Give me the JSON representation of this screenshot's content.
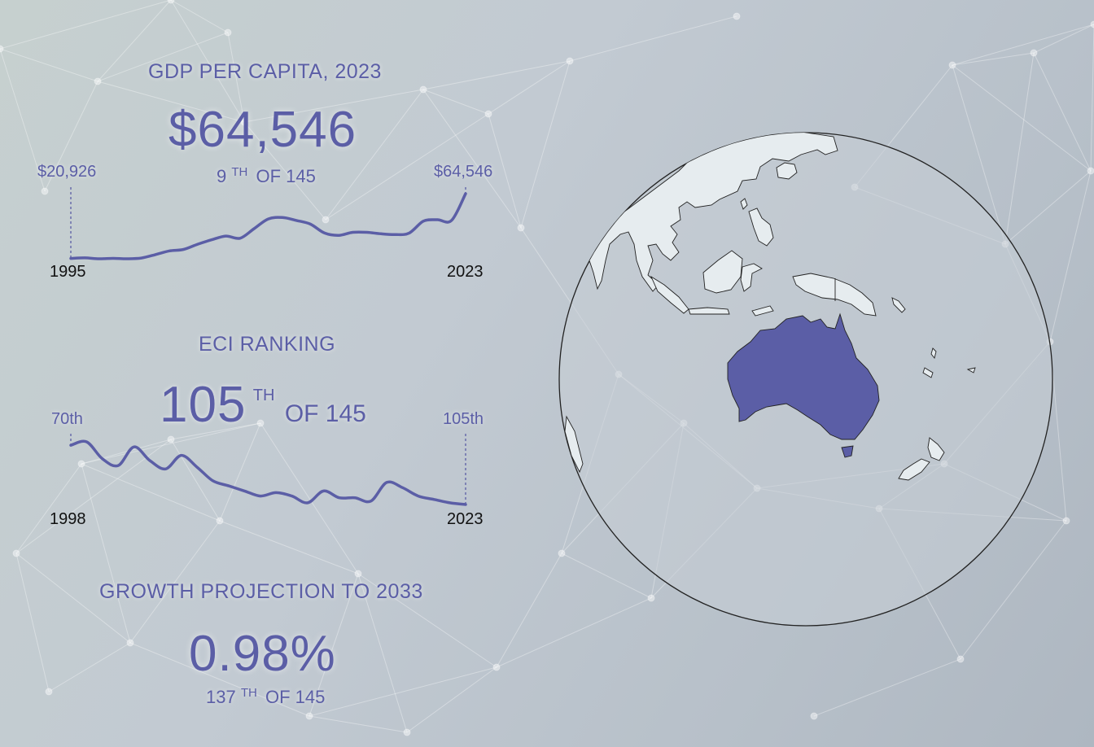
{
  "gdp": {
    "heading": "GDP PER CAPITA, 2023",
    "value": "$64,546",
    "rank_num": "9",
    "rank_sup": "TH",
    "rank_of": "OF 145",
    "start_value": "$20,926",
    "end_value": "$64,546",
    "start_year": "1995",
    "end_year": "2023"
  },
  "eci": {
    "heading": "ECI RANKING",
    "rank_num": "105",
    "rank_sup": "TH",
    "rank_of": "OF 145",
    "start_value": "70th",
    "end_value": "105th",
    "start_year": "1998",
    "end_year": "2023"
  },
  "growth": {
    "heading": "GROWTH PROJECTION TO 2033",
    "value": "0.98%",
    "rank_num": "137",
    "rank_sup": "TH",
    "rank_of": "OF 145"
  },
  "colors": {
    "accent": "#5b5ea6",
    "land": "#e6ecef",
    "ocean": "#c9d0d6",
    "highlight": "#5b5ea6"
  },
  "chart_data": [
    {
      "type": "line",
      "series": [
        {
          "x": [
            1995,
            1996,
            1997,
            1998,
            1999,
            2000,
            2001,
            2002,
            2003,
            2004,
            2005,
            2006,
            2007,
            2008,
            2009,
            2010,
            2011,
            2012,
            2013,
            2014,
            2015,
            2016,
            2017,
            2018,
            2019,
            2020,
            2021,
            2022,
            2023
          ],
          "values": [
            20926,
            21300,
            20700,
            21000,
            20700,
            21200,
            23500,
            26000,
            27000,
            30500,
            33500,
            36000,
            34500,
            41000,
            47500,
            48500,
            46500,
            44000,
            38000,
            36500,
            38500,
            38500,
            37500,
            37000,
            38000,
            46000,
            47000,
            46500,
            64546
          ]
        }
      ]
    },
    {
      "type": "line",
      "series": [
        {
          "x": [
            1998,
            1999,
            2000,
            2001,
            2002,
            2003,
            2004,
            2005,
            2006,
            2007,
            2008,
            2009,
            2010,
            2011,
            2012,
            2013,
            2014,
            2015,
            2016,
            2017,
            2018,
            2019,
            2020,
            2021,
            2022,
            2023
          ],
          "values": [
            70,
            68,
            78,
            82,
            71,
            79,
            84,
            76,
            83,
            91,
            94,
            97,
            100,
            98,
            100,
            104,
            97,
            101,
            101,
            103,
            92,
            95,
            100,
            102,
            104,
            105
          ]
        }
      ]
    }
  ]
}
